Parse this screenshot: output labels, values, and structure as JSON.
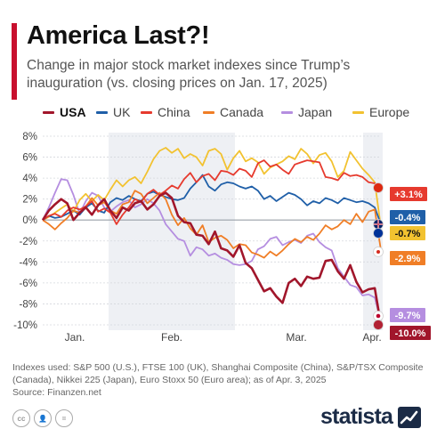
{
  "header": {
    "title": "America Last?!",
    "subtitle": "Change in major stock market indexes since Trump’s inauguration (vs. closing prices on Jan. 17, 2025)",
    "accent_color": "#c8102e"
  },
  "legend": [
    {
      "name": "USA",
      "color": "#a1162b",
      "bold": true
    },
    {
      "name": "UK",
      "color": "#1f5fa8",
      "bold": false
    },
    {
      "name": "China",
      "color": "#e63a2e",
      "bold": false
    },
    {
      "name": "Canada",
      "color": "#f07e26",
      "bold": false
    },
    {
      "name": "Japan",
      "color": "#b58ee0",
      "bold": false
    },
    {
      "name": "Europe",
      "color": "#f2c230",
      "bold": false
    }
  ],
  "footer": {
    "notes": "Indexes used: S&P 500 (U.S.), FTSE 100 (UK), Shanghai Composite (China), S&P/TSX Composite (Canada), Nikkei 225 (Japan), Euro Stoxx 50 (Euro area); as of Apr. 3, 2025",
    "source": "Source: Finanzen.net",
    "brand": "statista",
    "brand_color": "#1b2b46",
    "license_icons": [
      "cc-icon",
      "by-icon",
      "nd-icon"
    ]
  },
  "chart_data": {
    "type": "line",
    "title": "America Last?!",
    "xlabel": "",
    "ylabel": "",
    "ylim": [
      -10,
      8
    ],
    "y_ticks": [
      -10,
      -8,
      -6,
      -4,
      -2,
      0,
      2,
      4,
      6,
      8
    ],
    "y_tick_labels": [
      "-10%",
      "-8%",
      "-6%",
      "-4%",
      "-2%",
      "0%",
      "2%",
      "4%",
      "6%",
      "8%"
    ],
    "x_ticks": [
      "Jan.",
      "Feb.",
      "Mar.",
      "Apr."
    ],
    "shaded_months": [
      "Feb.",
      "Apr."
    ],
    "grid": true,
    "legend_position": "top",
    "series": [
      {
        "name": "USA",
        "color": "#a1162b",
        "final_label": "-10.0%",
        "flag": "USA",
        "values": [
          0.0,
          0.9,
          1.5,
          2.0,
          1.6,
          0.0,
          0.7,
          1.2,
          0.5,
          1.4,
          2.0,
          0.9,
          0.2,
          1.2,
          0.9,
          1.6,
          1.8,
          1.0,
          1.5,
          2.3,
          2.6,
          2.1,
          0.4,
          -0.2,
          -0.3,
          -1.4,
          -1.5,
          -2.3,
          -1.1,
          -2.7,
          -2.9,
          -3.5,
          -2.4,
          -4.1,
          -4.6,
          -5.7,
          -6.8,
          -6.5,
          -7.3,
          -7.9,
          -6.0,
          -5.6,
          -6.3,
          -5.4,
          -5.6,
          -5.5,
          -3.9,
          -3.8,
          -4.9,
          -5.6,
          -4.3,
          -5.9,
          -6.9,
          -6.6,
          -6.5,
          -10.0
        ]
      },
      {
        "name": "UK",
        "color": "#1f5fa8",
        "final_label": "-0.4%",
        "flag": "UK",
        "values": [
          0.0,
          0.4,
          0.2,
          0.3,
          0.6,
          0.9,
          0.5,
          1.2,
          1.6,
          0.9,
          0.7,
          1.7,
          2.1,
          1.9,
          2.3,
          2.0,
          1.8,
          2.5,
          2.7,
          2.4,
          2.2,
          2.0,
          1.9,
          2.1,
          3.0,
          3.6,
          4.3,
          3.2,
          2.8,
          3.4,
          3.6,
          3.5,
          3.2,
          3.0,
          3.2,
          2.8,
          2.0,
          2.3,
          1.8,
          2.2,
          2.6,
          2.4,
          2.0,
          1.4,
          1.8,
          1.6,
          2.1,
          1.9,
          1.6,
          2.1,
          1.9,
          1.7,
          1.8,
          1.6,
          1.2,
          -0.4
        ]
      },
      {
        "name": "China",
        "color": "#e63a2e",
        "final_label": "+3.1%",
        "flag": "China",
        "values": [
          0.0,
          0.4,
          0.6,
          0.3,
          0.9,
          1.2,
          1.0,
          1.3,
          1.8,
          0.8,
          1.1,
          0.7,
          -0.4,
          0.5,
          1.2,
          2.0,
          1.7,
          2.5,
          2.9,
          2.4,
          2.8,
          3.3,
          3.0,
          3.9,
          4.5,
          3.6,
          4.2,
          4.4,
          3.8,
          4.7,
          4.6,
          4.3,
          4.9,
          4.7,
          4.1,
          5.4,
          5.7,
          5.1,
          5.3,
          4.8,
          4.4,
          5.3,
          5.5,
          5.7,
          5.6,
          5.5,
          4.1,
          4.0,
          3.8,
          4.5,
          4.2,
          4.3,
          4.1,
          3.6,
          3.5,
          3.1
        ]
      },
      {
        "name": "Canada",
        "color": "#f07e26",
        "final_label": "-2.9%",
        "flag": "Canada",
        "values": [
          0.0,
          -0.4,
          -0.9,
          -0.3,
          0.2,
          0.9,
          0.7,
          1.3,
          2.1,
          1.4,
          1.7,
          0.9,
          0.6,
          1.5,
          1.7,
          2.8,
          2.5,
          1.6,
          2.1,
          2.6,
          2.0,
          0.5,
          -0.5,
          0.2,
          -0.8,
          -1.4,
          -0.5,
          -2.1,
          -1.7,
          -1.5,
          -1.9,
          -2.7,
          -2.3,
          -2.4,
          -3.1,
          -3.3,
          -3.6,
          -3.0,
          -3.4,
          -2.9,
          -2.3,
          -1.8,
          -2.1,
          -1.6,
          -1.9,
          -1.3,
          -0.5,
          -0.9,
          -0.6,
          0.0,
          -0.4,
          0.6,
          -0.2,
          0.8,
          1.0,
          -2.9
        ]
      },
      {
        "name": "Japan",
        "color": "#b58ee0",
        "final_label": "-9.7%",
        "flag": "Japan",
        "values": [
          0.0,
          1.2,
          2.6,
          3.9,
          3.8,
          2.4,
          0.6,
          1.8,
          2.6,
          2.3,
          1.2,
          0.8,
          1.3,
          1.7,
          1.9,
          1.2,
          1.5,
          2.0,
          1.6,
          0.9,
          -0.4,
          -1.1,
          -1.8,
          -2.0,
          -3.4,
          -2.6,
          -2.8,
          -3.4,
          -3.2,
          -3.6,
          -3.8,
          -4.2,
          -4.3,
          -4.2,
          -3.9,
          -2.8,
          -2.5,
          -1.8,
          -1.6,
          -2.4,
          -2.1,
          -1.9,
          -2.2,
          -1.5,
          -1.3,
          -2.1,
          -2.6,
          -2.9,
          -4.6,
          -5.4,
          -6.2,
          -6.4,
          -7.2,
          -7.1,
          -7.4,
          -9.7
        ]
      },
      {
        "name": "Europe",
        "color": "#f2c230",
        "final_label": "-0.7%",
        "flag": "EU",
        "values": [
          0.0,
          0.3,
          0.7,
          1.1,
          1.5,
          0.8,
          1.9,
          2.5,
          1.8,
          2.4,
          1.9,
          2.9,
          3.8,
          3.2,
          3.8,
          4.1,
          3.5,
          4.6,
          5.8,
          6.6,
          6.9,
          6.4,
          6.8,
          5.9,
          6.3,
          6.0,
          5.2,
          6.6,
          6.8,
          6.3,
          4.8,
          5.9,
          6.6,
          5.6,
          5.9,
          5.5,
          4.4,
          5.0,
          5.3,
          5.6,
          6.1,
          5.8,
          6.8,
          6.3,
          5.4,
          6.2,
          6.4,
          5.6,
          4.1,
          4.7,
          6.5,
          5.7,
          4.9,
          4.3,
          3.6,
          -0.7
        ]
      }
    ]
  }
}
